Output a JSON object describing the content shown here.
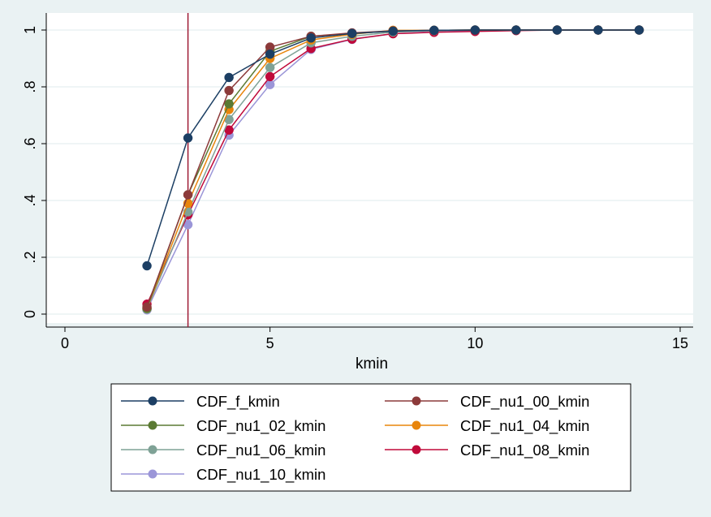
{
  "chart_data": {
    "type": "line",
    "title": "",
    "xlabel": "kmin",
    "ylabel": "",
    "xlim": [
      0,
      15
    ],
    "ylim": [
      0,
      1
    ],
    "x_ticks": [
      "0",
      "5",
      "10",
      "15"
    ],
    "y_ticks": [
      "0",
      ".2",
      ".4",
      ".6",
      ".8",
      "1"
    ],
    "grid": true,
    "reference_line": {
      "x": 3,
      "color": "#9e1a34"
    },
    "legend_position": "bottom",
    "series": [
      {
        "name": "CDF_f_kmin",
        "color": "#1c3f64",
        "x": [
          2,
          3,
          4,
          5,
          6,
          7,
          8,
          9,
          10,
          11,
          12,
          13,
          14
        ],
        "y": [
          0.17,
          0.62,
          0.833,
          0.915,
          0.972,
          0.988,
          0.996,
          0.999,
          1.0,
          1.0,
          1.0,
          1.0,
          1.0
        ]
      },
      {
        "name": "CDF_nu1_00_kmin",
        "color": "#8c3a3a",
        "x": [
          2,
          3,
          4,
          5,
          6,
          7,
          8,
          9,
          10,
          11,
          12,
          13,
          14
        ],
        "y": [
          0.025,
          0.42,
          0.787,
          0.94,
          0.978,
          0.99,
          0.997,
          0.999,
          1.0,
          1.0,
          1.0,
          1.0,
          1.0
        ]
      },
      {
        "name": "CDF_nu1_02_kmin",
        "color": "#5b7a33",
        "x": [
          2,
          3,
          4,
          5,
          6,
          7,
          8,
          9,
          10,
          11,
          12,
          13,
          14
        ],
        "y": [
          0.02,
          0.42,
          0.74,
          0.925,
          0.978,
          0.988,
          0.996,
          0.999,
          1.0,
          1.0,
          1.0,
          1.0,
          1.0
        ]
      },
      {
        "name": "CDF_nu1_04_kmin",
        "color": "#e8850c",
        "x": [
          2,
          3,
          4,
          5,
          6,
          7,
          8,
          9,
          10,
          11,
          12,
          13,
          14
        ],
        "y": [
          0.02,
          0.39,
          0.72,
          0.9,
          0.965,
          0.985,
          0.999,
          0.999,
          1.0,
          1.0,
          1.0,
          1.0,
          1.0
        ]
      },
      {
        "name": "CDF_nu1_06_kmin",
        "color": "#7fa296",
        "x": [
          2,
          3,
          4,
          5,
          6,
          7,
          8,
          9,
          10,
          11,
          12,
          13,
          14
        ],
        "y": [
          0.018,
          0.36,
          0.685,
          0.868,
          0.955,
          0.978,
          0.993,
          0.998,
          1.0,
          1.0,
          1.0,
          1.0,
          1.0
        ]
      },
      {
        "name": "CDF_nu1_08_kmin",
        "color": "#c0093a",
        "x": [
          2,
          3,
          4,
          5,
          6,
          7,
          8,
          9,
          10,
          11,
          12,
          13,
          14
        ],
        "y": [
          0.035,
          0.35,
          0.648,
          0.836,
          0.935,
          0.968,
          0.987,
          0.992,
          0.995,
          0.998,
          1.0,
          1.0,
          1.0
        ]
      },
      {
        "name": "CDF_nu1_10_kmin",
        "color": "#9b96d8",
        "x": [
          2,
          3,
          4,
          5,
          6,
          7,
          8,
          9,
          10,
          11,
          12,
          13,
          14
        ],
        "y": [
          0.015,
          0.315,
          0.63,
          0.808,
          0.932,
          0.967,
          0.987,
          0.994,
          0.998,
          0.999,
          1.0,
          1.0,
          1.0
        ]
      }
    ],
    "legend_order": [
      0,
      1,
      2,
      3,
      4,
      5,
      6
    ]
  }
}
